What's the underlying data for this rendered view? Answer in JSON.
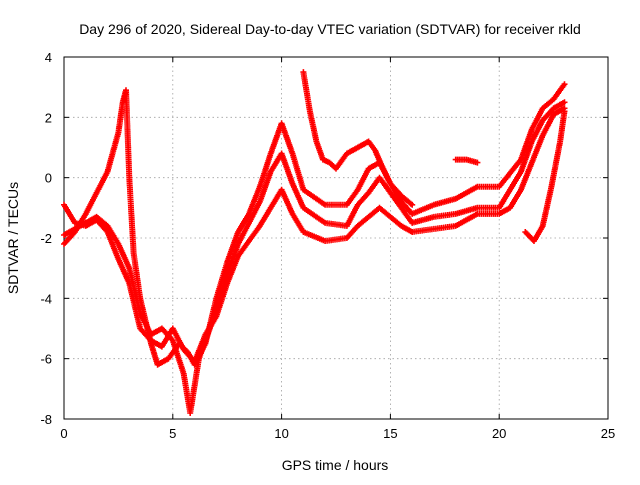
{
  "chart_data": {
    "type": "line",
    "title": "Day 296 of 2020, Sidereal Day-to-day VTEC variation (SDTVAR) for receiver rkld",
    "xlabel": "GPS time / hours",
    "ylabel": "SDTVAR / TECUs",
    "xlim": [
      0,
      25
    ],
    "ylim": [
      -8,
      4
    ],
    "xticks": [
      0,
      5,
      10,
      15,
      20,
      25
    ],
    "yticks": [
      -8,
      -6,
      -4,
      -2,
      0,
      2,
      4
    ],
    "grid": true,
    "marker": "plus",
    "color": "#ff0000",
    "series": [
      {
        "points": [
          [
            0,
            -2.2
          ],
          [
            0.5,
            -1.8
          ],
          [
            1,
            -1.2
          ],
          [
            1.5,
            -0.5
          ],
          [
            2,
            0.2
          ],
          [
            2.5,
            1.5
          ],
          [
            2.7,
            2.5
          ],
          [
            2.85,
            2.9
          ],
          [
            3.0,
            0.0
          ],
          [
            3.2,
            -2.5
          ],
          [
            3.5,
            -4.0
          ],
          [
            4.0,
            -5.5
          ],
          [
            4.3,
            -6.2
          ],
          [
            4.8,
            -6.0
          ],
          [
            5.3,
            -5.5
          ],
          [
            5.7,
            -5.8
          ],
          [
            6.0,
            -6.2
          ],
          [
            6.5,
            -5.5
          ],
          [
            7.0,
            -4.0
          ],
          [
            7.5,
            -2.8
          ],
          [
            8.0,
            -1.8
          ],
          [
            8.5,
            -1.2
          ],
          [
            9.0,
            -0.3
          ],
          [
            9.5,
            0.8
          ],
          [
            10.0,
            1.8
          ],
          [
            10.5,
            0.8
          ],
          [
            11.0,
            -0.4
          ],
          [
            12.0,
            -0.9
          ],
          [
            13.0,
            -0.9
          ],
          [
            13.5,
            -0.4
          ],
          [
            14.0,
            0.3
          ],
          [
            14.5,
            0.5
          ],
          [
            15.0,
            -0.2
          ],
          [
            15.5,
            -0.8
          ],
          [
            16.0,
            -1.2
          ],
          [
            17.0,
            -0.9
          ],
          [
            18.0,
            -0.7
          ],
          [
            19.0,
            -0.3
          ],
          [
            20.0,
            -0.3
          ],
          [
            21.0,
            0.6
          ],
          [
            21.5,
            1.6
          ],
          [
            22.0,
            2.3
          ],
          [
            22.5,
            2.6
          ],
          [
            23.0,
            3.1
          ]
        ]
      },
      {
        "points": [
          [
            0,
            -1.9
          ],
          [
            0.5,
            -1.7
          ],
          [
            1,
            -1.5
          ],
          [
            1.5,
            -1.3
          ],
          [
            2,
            -1.6
          ],
          [
            2.5,
            -2.2
          ],
          [
            3.0,
            -3.0
          ],
          [
            3.5,
            -4.5
          ],
          [
            4.0,
            -5.2
          ],
          [
            4.5,
            -5.0
          ],
          [
            5.0,
            -5.4
          ],
          [
            5.5,
            -6.5
          ],
          [
            5.8,
            -7.8
          ],
          [
            6.2,
            -6.0
          ],
          [
            6.8,
            -4.8
          ],
          [
            7.5,
            -3.2
          ],
          [
            8.0,
            -2.2
          ],
          [
            8.5,
            -1.5
          ],
          [
            9.0,
            -0.8
          ],
          [
            9.5,
            0.2
          ],
          [
            10.0,
            0.8
          ],
          [
            10.5,
            -0.2
          ],
          [
            11.0,
            -1.0
          ],
          [
            12.0,
            -1.5
          ],
          [
            13.0,
            -1.6
          ],
          [
            13.5,
            -0.9
          ],
          [
            14.0,
            -0.5
          ],
          [
            14.5,
            0.0
          ],
          [
            15.0,
            -0.5
          ],
          [
            15.5,
            -1.0
          ],
          [
            16.0,
            -1.5
          ],
          [
            17.0,
            -1.3
          ],
          [
            18.0,
            -1.2
          ],
          [
            19.0,
            -1.0
          ],
          [
            20.0,
            -1.0
          ],
          [
            21.0,
            0.2
          ],
          [
            21.5,
            1.2
          ],
          [
            22.0,
            1.9
          ],
          [
            22.5,
            2.3
          ],
          [
            23.0,
            2.5
          ]
        ]
      },
      {
        "points": [
          [
            0,
            -0.9
          ],
          [
            0.5,
            -1.5
          ],
          [
            1,
            -1.6
          ],
          [
            1.5,
            -1.4
          ],
          [
            2,
            -1.8
          ],
          [
            2.5,
            -2.7
          ],
          [
            3.0,
            -3.5
          ],
          [
            3.5,
            -5.0
          ],
          [
            4.0,
            -5.4
          ],
          [
            4.5,
            -5.6
          ],
          [
            5.0,
            -5.0
          ],
          [
            5.5,
            -5.7
          ],
          [
            6.0,
            -6.1
          ],
          [
            6.5,
            -5.2
          ],
          [
            7.0,
            -4.6
          ],
          [
            7.5,
            -3.5
          ],
          [
            8.0,
            -2.6
          ],
          [
            8.5,
            -2.1
          ],
          [
            9.0,
            -1.6
          ],
          [
            9.5,
            -1.0
          ],
          [
            10.0,
            -0.4
          ],
          [
            10.5,
            -1.2
          ],
          [
            11.0,
            -1.8
          ],
          [
            12.0,
            -2.1
          ],
          [
            13.0,
            -2.0
          ],
          [
            13.5,
            -1.6
          ],
          [
            14.0,
            -1.3
          ],
          [
            14.5,
            -1.0
          ],
          [
            15.0,
            -1.3
          ],
          [
            15.5,
            -1.6
          ],
          [
            16.0,
            -1.8
          ],
          [
            17.0,
            -1.7
          ],
          [
            18.0,
            -1.6
          ],
          [
            19.0,
            -1.2
          ],
          [
            20.0,
            -1.2
          ],
          [
            20.5,
            -1.0
          ],
          [
            21.0,
            -0.4
          ],
          [
            21.5,
            0.5
          ],
          [
            22.0,
            1.4
          ],
          [
            22.5,
            2.1
          ],
          [
            23.0,
            2.3
          ]
        ]
      },
      {
        "points": [
          [
            11.0,
            3.5
          ],
          [
            11.3,
            2.2
          ],
          [
            11.6,
            1.2
          ],
          [
            11.9,
            0.6
          ],
          [
            12.2,
            0.5
          ],
          [
            12.5,
            0.3
          ],
          [
            13.0,
            0.8
          ],
          [
            13.5,
            1.0
          ],
          [
            14.0,
            1.2
          ],
          [
            14.3,
            0.9
          ],
          [
            14.6,
            0.4
          ],
          [
            15.0,
            -0.2
          ],
          [
            15.5,
            -0.6
          ],
          [
            16.0,
            -0.9
          ]
        ]
      },
      {
        "points": [
          [
            18.0,
            0.6
          ],
          [
            18.5,
            0.6
          ],
          [
            19.0,
            0.5
          ]
        ]
      },
      {
        "points": [
          [
            21.2,
            -1.8
          ],
          [
            21.6,
            -2.1
          ],
          [
            22.0,
            -1.6
          ],
          [
            22.4,
            -0.3
          ],
          [
            22.8,
            1.2
          ],
          [
            23.0,
            2.2
          ]
        ]
      }
    ]
  }
}
